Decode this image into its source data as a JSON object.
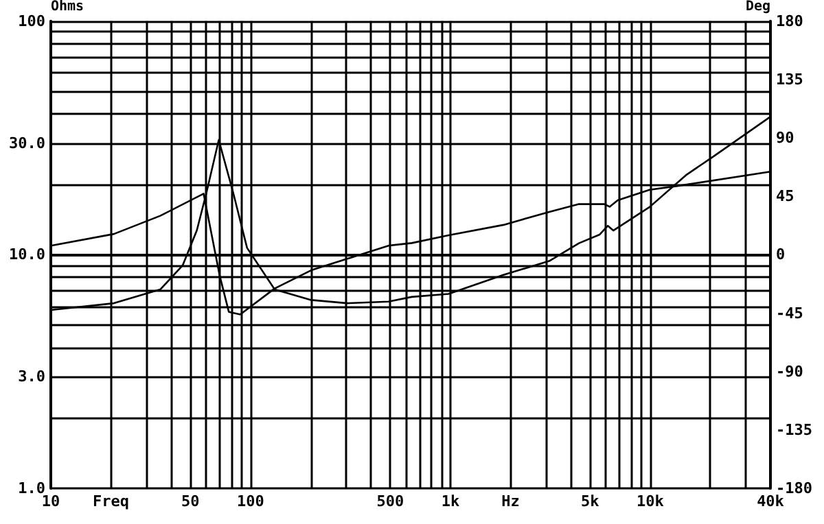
{
  "chart_data": {
    "type": "line",
    "xlabel": null,
    "ylabel": "Ohms",
    "y2label": "Deg",
    "x": [
      10,
      20.7,
      35.3,
      45.7,
      53.8,
      60,
      69.3,
      82,
      96,
      132,
      201,
      305,
      490,
      641,
      980,
      1845,
      3125,
      4400,
      5590,
      6140,
      6540,
      9930,
      15100,
      20800,
      40000
    ],
    "series": [
      {
        "color": "#000000",
        "values": [
          5.8,
          6.2,
          7.1,
          9.0,
          12.7,
          18.3,
          31,
          18.3,
          10.7,
          7.1,
          6.4,
          6.2,
          6.3,
          6.6,
          6.8,
          8.2,
          9.4,
          11.2,
          12.2,
          13.3,
          12.7,
          16.0,
          21.9,
          26.4,
          39.0
        ]
      },
      {
        "color": "#000000",
        "axis": "y2",
        "x": [
          10,
          20.7,
          35.3,
          58.2,
          70,
          77.8,
          88.7,
          132,
          201,
          490,
          641,
          980,
          1845,
          3125,
          4400,
          5890,
          6270,
          6880,
          9930,
          13700,
          40000
        ],
        "values": [
          7,
          16,
          30,
          47,
          -16,
          -44,
          -46,
          -26,
          -12,
          7,
          9,
          15,
          23,
          33,
          39,
          39,
          37,
          42,
          50,
          53,
          64
        ]
      }
    ],
    "log": "xy",
    "xlim": [
      10,
      40000
    ],
    "xticks": [
      10,
      {
        "value": 20,
        "label": "Freq"
      },
      {
        "value": 30,
        "label": null
      },
      {
        "value": 40,
        "label": null
      },
      50,
      {
        "value": 60,
        "label": null
      },
      {
        "value": 70,
        "label": null
      },
      {
        "value": 80,
        "label": null
      },
      {
        "value": 90,
        "label": null
      },
      100,
      {
        "value": 200,
        "label": null
      },
      {
        "value": 300,
        "label": null
      },
      {
        "value": 400,
        "label": null
      },
      500,
      {
        "value": 600,
        "label": null
      },
      {
        "value": 700,
        "label": null
      },
      {
        "value": 800,
        "label": null
      },
      {
        "value": 900,
        "label": null
      },
      {
        "value": 1000,
        "label": "1k"
      },
      {
        "value": 2000,
        "label": "Hz"
      },
      {
        "value": 3000,
        "label": null
      },
      {
        "value": 4000,
        "label": null
      },
      {
        "value": 5000,
        "label": "5k"
      },
      {
        "value": 6000,
        "label": null
      },
      {
        "value": 7000,
        "label": null
      },
      {
        "value": 8000,
        "label": null
      },
      {
        "value": 9000,
        "label": null
      },
      {
        "value": 10000,
        "label": "10k"
      },
      {
        "value": 20000,
        "label": null
      },
      {
        "value": 30000,
        "label": null
      },
      {
        "value": 40000,
        "label": "40k"
      }
    ],
    "ylim": [
      1,
      100
    ],
    "yticks": [
      {
        "value": 1,
        "label": "1.0"
      },
      {
        "value": 2,
        "label": null
      },
      {
        "value": 3,
        "label": "3.0"
      },
      {
        "value": 4,
        "label": null
      },
      {
        "value": 5,
        "label": null
      },
      {
        "value": 6,
        "label": null
      },
      {
        "value": 7,
        "label": null
      },
      {
        "value": 8,
        "label": null
      },
      {
        "value": 9,
        "label": null
      },
      {
        "value": 10,
        "label": "10.0"
      },
      {
        "value": 20,
        "label": null
      },
      {
        "value": 30,
        "label": "30.0"
      },
      {
        "value": 40,
        "label": null
      },
      {
        "value": 50,
        "label": null
      },
      {
        "value": 60,
        "label": null
      },
      {
        "value": 70,
        "label": null
      },
      {
        "value": 80,
        "label": null
      },
      {
        "value": 90,
        "label": null
      },
      100
    ],
    "y2lim": [
      -180,
      180
    ],
    "y2ticks": [
      -180,
      -135,
      -90,
      -45,
      0,
      45,
      90,
      135,
      180
    ],
    "grid": true,
    "marker": "none",
    "line_style": "solid"
  }
}
